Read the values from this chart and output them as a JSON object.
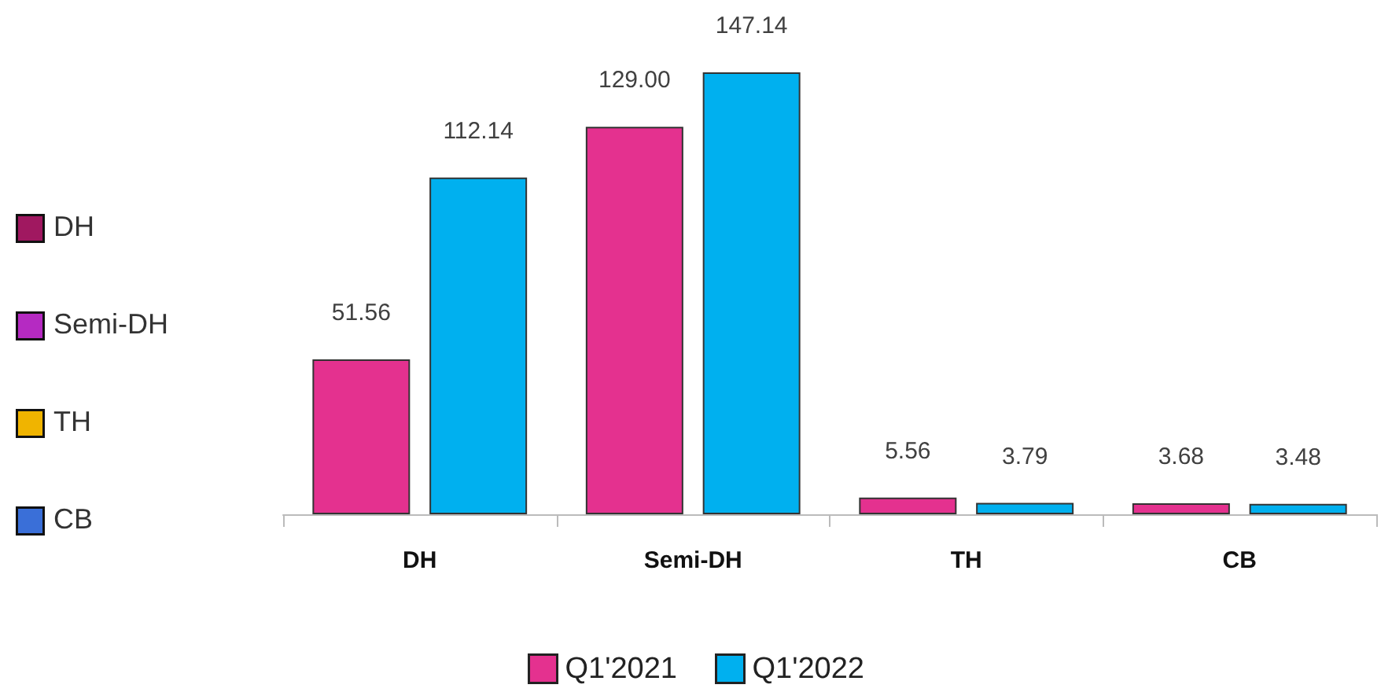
{
  "chart_data": {
    "type": "bar",
    "categories": [
      "DH",
      "Semi-DH",
      "TH",
      "CB"
    ],
    "series": [
      {
        "name": "Q1'2021",
        "color": "#e4318f",
        "values": [
          51.56,
          129.0,
          5.56,
          3.68
        ],
        "value_labels": [
          "51.56",
          "129.00",
          "5.56",
          "3.68"
        ]
      },
      {
        "name": "Q1'2022",
        "color": "#00b0ef",
        "values": [
          112.14,
          147.14,
          3.79,
          3.48
        ],
        "value_labels": [
          "112.14",
          "147.14",
          "3.79",
          "3.48"
        ]
      },
      {
        "name": "DH",
        "color": "#a01860",
        "values": [
          null,
          null,
          null,
          null
        ]
      },
      {
        "name": "Semi-DH",
        "color": "#b52ac2",
        "values": [
          null,
          null,
          null,
          null
        ]
      },
      {
        "name": "TH",
        "color": "#f0b400",
        "values": [
          null,
          null,
          null,
          null
        ]
      },
      {
        "name": "CB",
        "color": "#3a6fd8",
        "values": [
          null,
          null,
          null,
          null
        ]
      }
    ],
    "legend": "bottom"
  }
}
